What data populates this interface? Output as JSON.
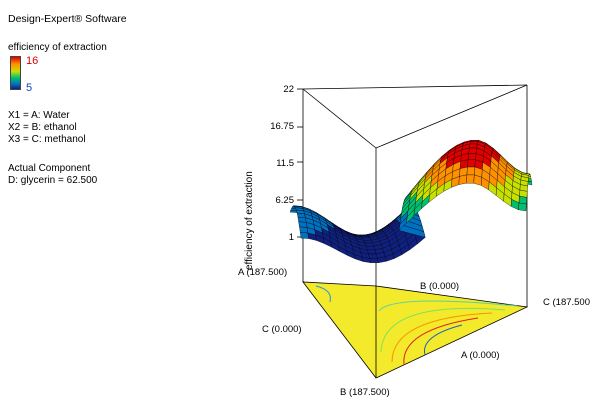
{
  "software_title": "Design-Expert® Software",
  "legend": {
    "title": "efficiency of extraction",
    "high": "16",
    "low": "5"
  },
  "factors": {
    "x1": "X1 = A: Water",
    "x2": "X2 = B: ethanol",
    "x3": "X3 = C: methanol"
  },
  "actual_component": {
    "heading": "Actual Component",
    "value": "D: glycerin = 62.500"
  },
  "chart_data": {
    "type": "3d-surface",
    "zlabel": "efficiency of extraction",
    "z_ticks": [
      "22",
      "16.75",
      "11.5",
      "6.25",
      "1"
    ],
    "zlim": [
      1,
      22
    ],
    "vertex_labels": {
      "a_top": "A (187.500)",
      "b_zero": "B (0.000)",
      "c_max": "C (187.500",
      "c_zero": "C (0.000)",
      "a_zero": "A (0.000)",
      "b_max": "B (187.500)"
    },
    "surface_colors": [
      "#102080",
      "#0070c0",
      "#00c070",
      "#c8e000",
      "#ff9000",
      "#e00000"
    ],
    "surface_approx": {
      "note_free": true,
      "left_edge_z": 7,
      "valley_z": 2.5,
      "peak_z": 16,
      "right_edge_z": 11
    }
  }
}
